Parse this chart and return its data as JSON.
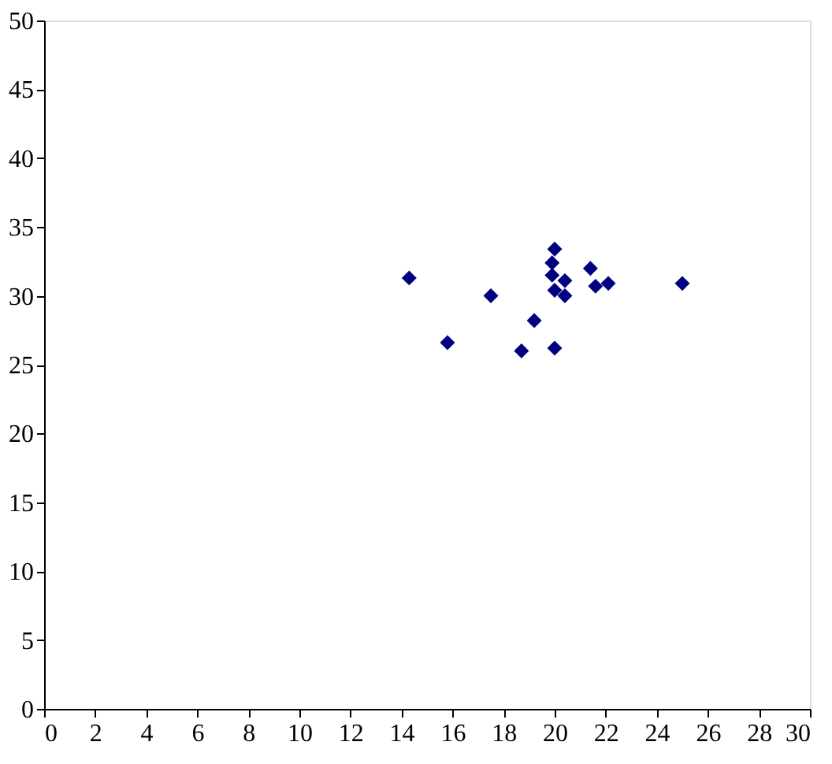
{
  "chart_data": {
    "type": "scatter",
    "marker": "diamond",
    "color": "#000080",
    "x": [
      14.3,
      15.8,
      17.5,
      19.2,
      18.7,
      20.0,
      20.0,
      19.9,
      19.9,
      20.4,
      20.0,
      20.4,
      21.4,
      21.6,
      22.1,
      25.0
    ],
    "values": [
      31.3,
      26.6,
      30.0,
      28.2,
      26.0,
      26.2,
      33.4,
      32.4,
      31.5,
      31.1,
      30.4,
      30.0,
      32.0,
      30.7,
      30.9,
      30.9
    ],
    "xlim": [
      0,
      30
    ],
    "xticks": [
      0,
      2,
      4,
      6,
      8,
      10,
      12,
      14,
      16,
      18,
      20,
      22,
      24,
      26,
      28,
      30
    ],
    "ylim": [
      0,
      50
    ],
    "yticks": [
      0,
      5,
      10,
      15,
      20,
      25,
      30,
      35,
      40,
      45,
      50
    ],
    "grid": false
  }
}
